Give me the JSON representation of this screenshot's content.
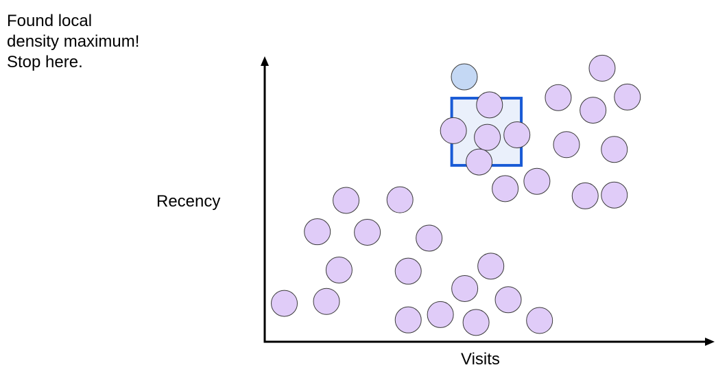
{
  "annotation": {
    "lines": [
      "Found local",
      "density maximum!",
      "Stop here."
    ]
  },
  "axes": {
    "x_label": "Visits",
    "y_label": "Recency"
  },
  "colors": {
    "point_fill": "#e0ccf8",
    "point_stroke": "#3a3a3a",
    "center_fill": "#c4d8f4",
    "window_fill": "#eaf0fb",
    "window_stroke": "#1a5bd6",
    "axis": "#000000"
  },
  "chart_data": {
    "type": "scatter",
    "xlabel": "Visits",
    "ylabel": "Recency",
    "xlim": [
      0,
      100
    ],
    "ylim": [
      0,
      100
    ],
    "points": [
      {
        "x": 45.9,
        "y": 94.6,
        "role": "center"
      },
      {
        "x": 77.6,
        "y": 97.7
      },
      {
        "x": 67.5,
        "y": 87.2
      },
      {
        "x": 83.4,
        "y": 87.4
      },
      {
        "x": 75.5,
        "y": 82.7
      },
      {
        "x": 51.7,
        "y": 84.6
      },
      {
        "x": 43.4,
        "y": 75.4
      },
      {
        "x": 51.2,
        "y": 73.0
      },
      {
        "x": 58.0,
        "y": 73.9
      },
      {
        "x": 69.4,
        "y": 70.4
      },
      {
        "x": 80.4,
        "y": 68.7
      },
      {
        "x": 49.3,
        "y": 64.2
      },
      {
        "x": 62.6,
        "y": 57.3
      },
      {
        "x": 55.3,
        "y": 54.7
      },
      {
        "x": 73.7,
        "y": 52.1
      },
      {
        "x": 80.4,
        "y": 52.4
      },
      {
        "x": 18.7,
        "y": 50.5
      },
      {
        "x": 31.1,
        "y": 50.7
      },
      {
        "x": 12.1,
        "y": 39.3
      },
      {
        "x": 23.6,
        "y": 39.1
      },
      {
        "x": 37.8,
        "y": 37.0
      },
      {
        "x": 17.1,
        "y": 25.6
      },
      {
        "x": 33.0,
        "y": 25.2
      },
      {
        "x": 52.0,
        "y": 27.0
      },
      {
        "x": 46.0,
        "y": 19.0
      },
      {
        "x": 56.0,
        "y": 15.0
      },
      {
        "x": 4.5,
        "y": 13.7
      },
      {
        "x": 14.2,
        "y": 14.4
      },
      {
        "x": 33.0,
        "y": 7.8
      },
      {
        "x": 40.4,
        "y": 9.7
      },
      {
        "x": 48.6,
        "y": 6.9
      },
      {
        "x": 63.2,
        "y": 7.6
      }
    ],
    "window": {
      "x0": 43.0,
      "x1": 59.0,
      "y0": 63.0,
      "y1": 87.0
    }
  }
}
